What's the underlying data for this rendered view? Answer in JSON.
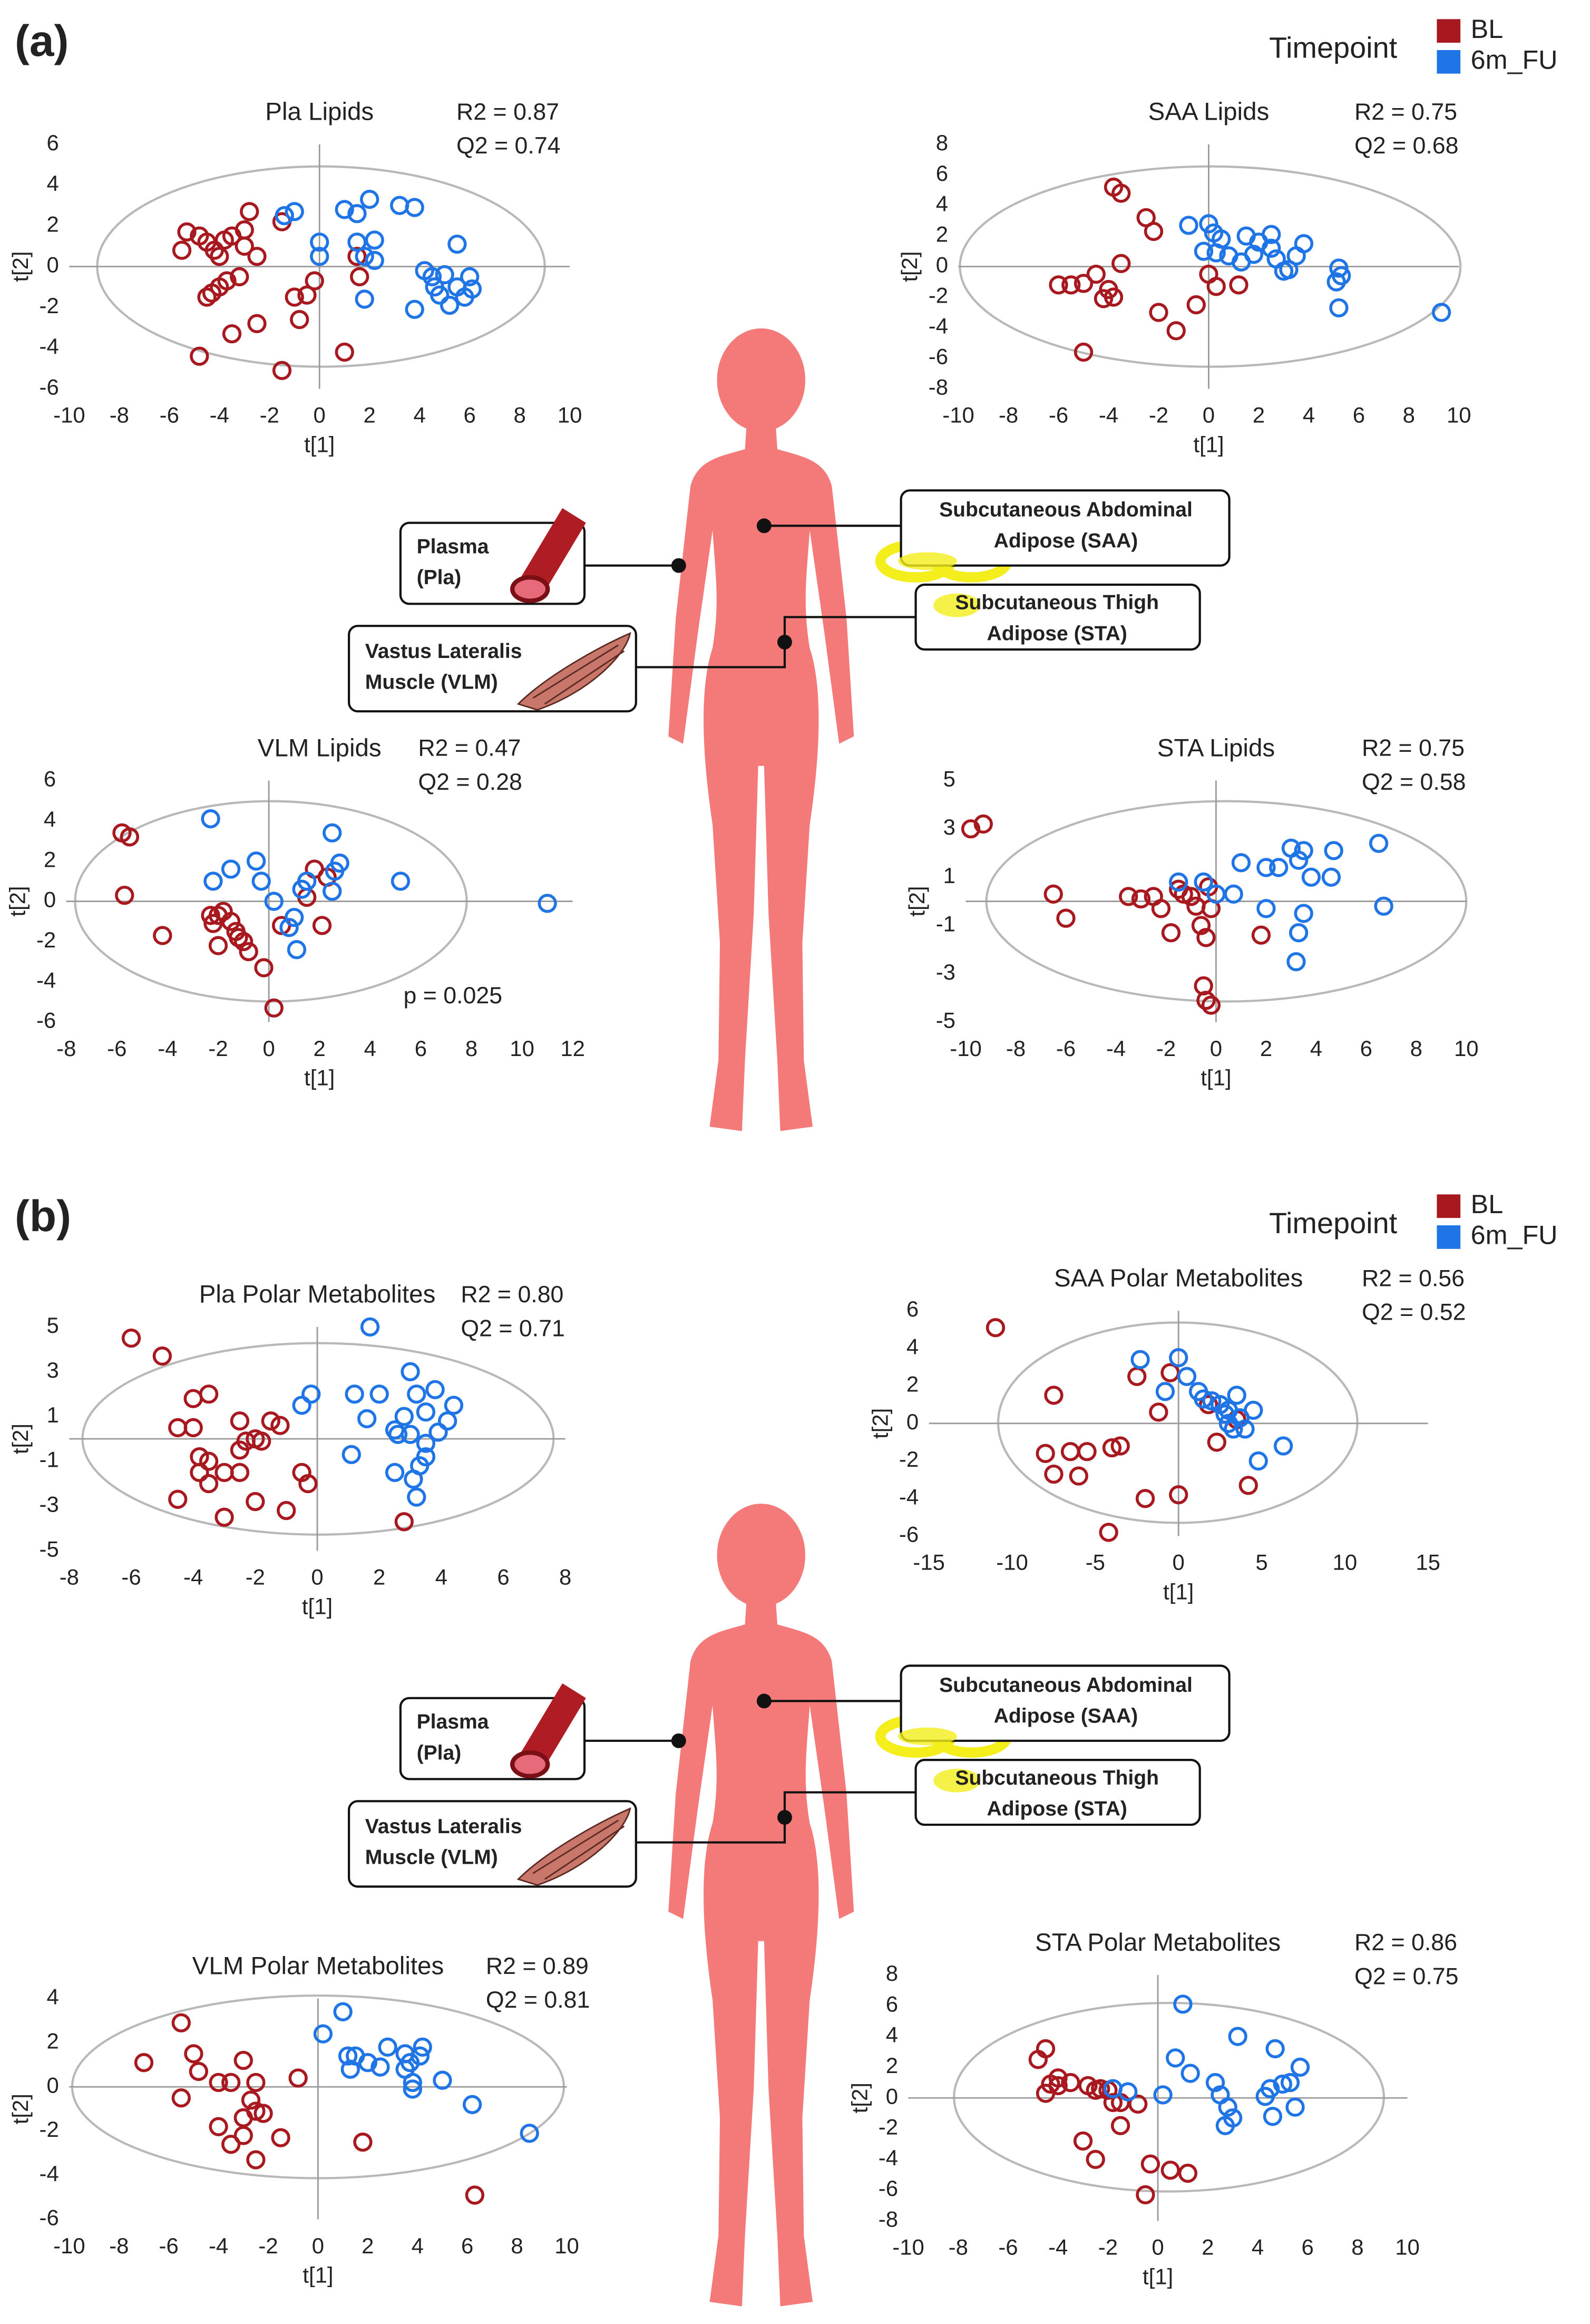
{
  "figure": {
    "panel_labels": [
      "(a)",
      "(b)"
    ],
    "legend_title": "Timepoint",
    "tissues": [
      {
        "lines": [
          "Plasma",
          "(Pla)"
        ]
      },
      {
        "lines": [
          "Subcutaneous Abdominal",
          "Adipose (SAA)"
        ]
      },
      {
        "lines": [
          "Subcutaneous Thigh",
          "Adipose (STA)"
        ]
      },
      {
        "lines": [
          "Vastus Lateralis",
          "Muscle (VLM)"
        ]
      }
    ]
  },
  "chart_data": [
    {
      "type": "scatter",
      "title": "Pla Lipids",
      "xlabel": "t[1]",
      "ylabel": "t[2]",
      "annotations": [
        "R2 = 0.87",
        "Q2 = 0.74"
      ],
      "xlim": [
        -10,
        10
      ],
      "xticks": [
        -10,
        -8,
        -6,
        -4,
        -2,
        0,
        2,
        4,
        6,
        8,
        10
      ],
      "ylim": [
        -6,
        6
      ],
      "yticks": [
        -6,
        -4,
        -2,
        0,
        2,
        4,
        6
      ],
      "series": [
        {
          "name": "BL",
          "color": "#a8181f",
          "x": [
            -5.3,
            -5.5,
            -4.8,
            -4.5,
            -4.2,
            -3.8,
            -3.5,
            -3,
            -2.8,
            -3,
            -2.5,
            -4.5,
            -4.3,
            -4,
            -3.7,
            -3.2,
            -3.5,
            -2.5,
            -4.8,
            -1.5,
            -1.5,
            -1,
            -0.8,
            -0.5,
            -0.2,
            1,
            1.5,
            1.6,
            -4
          ],
          "values": [
            1.7,
            0.8,
            1.5,
            1.2,
            0.8,
            1.3,
            1.5,
            1.8,
            2.7,
            1,
            0.5,
            -1.5,
            -1.3,
            -1,
            -0.7,
            -0.5,
            -3.3,
            -2.8,
            -4.4,
            -5.1,
            2.2,
            -1.5,
            -2.6,
            -1.4,
            -0.7,
            -4.2,
            0.5,
            -0.5,
            0.5
          ]
        },
        {
          "name": "6m_FU",
          "color": "#1f74e6",
          "x": [
            -1.4,
            -1,
            0,
            0,
            1,
            1.5,
            2,
            1.5,
            2.2,
            1.8,
            2.2,
            1.8,
            3.2,
            3.8,
            3.8,
            4.2,
            4.5,
            4.6,
            4.8,
            5,
            5.2,
            5.5,
            5.8,
            6,
            6.1,
            5.5
          ],
          "values": [
            2.5,
            2.7,
            1.2,
            0.5,
            2.8,
            2.6,
            3.3,
            1.2,
            1.3,
            0.5,
            0.3,
            -1.6,
            3,
            2.9,
            -2.1,
            -0.2,
            -0.5,
            -1,
            -1.4,
            -0.4,
            -1.9,
            1.1,
            -1.5,
            -0.5,
            -1.1,
            -1
          ]
        }
      ]
    },
    {
      "type": "scatter",
      "title": "SAA Lipids",
      "xlabel": "t[1]",
      "ylabel": "t[2]",
      "annotations": [
        "R2 = 0.75",
        "Q2 = 0.68"
      ],
      "xlim": [
        -10,
        10
      ],
      "xticks": [
        -10,
        -8,
        -6,
        -4,
        -2,
        0,
        2,
        4,
        6,
        8,
        10
      ],
      "ylim": [
        -8,
        8
      ],
      "yticks": [
        -8,
        -6,
        -4,
        -2,
        0,
        2,
        4,
        6,
        8
      ],
      "series": [
        {
          "name": "BL",
          "color": "#a8181f",
          "x": [
            -3.8,
            -3.5,
            -2.5,
            -2.2,
            -5.5,
            -5,
            -4.5,
            -4,
            -4.2,
            -3.8,
            -3.5,
            -2,
            -1.3,
            -0.5,
            0,
            0.3,
            1.2,
            -5,
            -6
          ],
          "values": [
            5.2,
            4.8,
            3.2,
            2.3,
            -1.2,
            -1.1,
            -0.5,
            -1.5,
            -2.1,
            -2,
            0.2,
            -3,
            -4.2,
            -2.5,
            -0.5,
            -1.3,
            -1.2,
            -5.6,
            -1.2
          ]
        },
        {
          "name": "6m_FU",
          "color": "#1f74e6",
          "x": [
            -0.8,
            0,
            0.2,
            0.5,
            -0.2,
            0.3,
            0.8,
            1.5,
            2,
            1.8,
            2.5,
            2.7,
            3,
            3.2,
            3.5,
            3.8,
            2.5,
            5.2,
            5.3,
            5.1,
            5.2,
            9.3,
            1.3
          ],
          "values": [
            2.7,
            2.8,
            2.2,
            1.8,
            1,
            0.9,
            0.7,
            2,
            1.6,
            0.8,
            1.2,
            0.5,
            -0.3,
            -0.2,
            0.7,
            1.5,
            2.1,
            -0.1,
            -0.6,
            -1,
            -2.7,
            -3,
            0.3
          ]
        }
      ]
    },
    {
      "type": "scatter",
      "title": "VLM Lipids",
      "xlabel": "t[1]",
      "ylabel": "t[2]",
      "annotations": [
        "R2 = 0.47",
        "Q2 = 0.28",
        "p = 0.025"
      ],
      "xlim": [
        -8,
        12
      ],
      "xticks": [
        -8,
        -6,
        -4,
        -2,
        0,
        2,
        4,
        6,
        8,
        10,
        12
      ],
      "ylim": [
        -6,
        6
      ],
      "yticks": [
        -6,
        -4,
        -2,
        0,
        2,
        4,
        6
      ],
      "series": [
        {
          "name": "BL",
          "color": "#a8181f",
          "x": [
            -5.8,
            -5.5,
            -5.7,
            -4.2,
            -2.3,
            -2.2,
            -2,
            -1.8,
            -1.5,
            -1.3,
            -1.2,
            -1,
            -0.8,
            -0.2,
            0.2,
            0.5,
            1.5,
            1.8,
            2.3,
            2.1,
            -2
          ],
          "values": [
            3.4,
            3.2,
            0.3,
            -1.7,
            -0.7,
            -1.1,
            -2.2,
            -0.5,
            -1,
            -1.5,
            -1.8,
            -2,
            -2.5,
            -3.3,
            -5.3,
            -1.2,
            0.2,
            1.6,
            1.2,
            -1.2,
            -0.7
          ]
        },
        {
          "name": "6m_FU",
          "color": "#1f74e6",
          "x": [
            -2.3,
            -2.2,
            -1.5,
            -0.5,
            0.2,
            0.8,
            1,
            1.3,
            1.5,
            1.1,
            2.5,
            2.8,
            2.6,
            2.5,
            5.2,
            11,
            -0.3
          ],
          "values": [
            4.1,
            1,
            1.6,
            2,
            0,
            -1.3,
            -0.8,
            0.6,
            1,
            -2.4,
            3.4,
            1.9,
            1.5,
            0.5,
            1,
            -0.1,
            1
          ]
        }
      ]
    },
    {
      "type": "scatter",
      "title": "STA Lipids",
      "xlabel": "t[1]",
      "ylabel": "t[2]",
      "annotations": [
        "R2 = 0.75",
        "Q2 = 0.58"
      ],
      "xlim": [
        -10,
        10
      ],
      "xticks": [
        -10,
        -8,
        -6,
        -4,
        -2,
        0,
        2,
        4,
        6,
        8,
        10
      ],
      "ylim": [
        -5,
        5
      ],
      "yticks": [
        -5,
        -3,
        -1,
        1,
        3,
        5
      ],
      "series": [
        {
          "name": "BL",
          "color": "#a8181f",
          "x": [
            -9.8,
            -9.3,
            -6.5,
            -6,
            -3.5,
            -3,
            -2.5,
            -2.2,
            -1.8,
            -1.5,
            -1,
            -0.8,
            -0.6,
            -0.4,
            -0.2,
            -0.5,
            -0.4,
            -0.2,
            1.8,
            -0.3,
            -1.3
          ],
          "values": [
            3,
            3.2,
            0.3,
            -0.7,
            0.2,
            0.1,
            0.2,
            -0.3,
            -1.3,
            0.5,
            0.2,
            -0.2,
            -1,
            -1.5,
            -0.3,
            -3.5,
            -4.1,
            -4.3,
            -1.4,
            0.6,
            0.3
          ]
        },
        {
          "name": "6m_FU",
          "color": "#1f74e6",
          "x": [
            -1.5,
            -0.5,
            0,
            1,
            2,
            2.5,
            3,
            3.3,
            3.5,
            3.8,
            4.7,
            4.6,
            3.5,
            3.3,
            3.2,
            6.5,
            6.7,
            2,
            0.7
          ],
          "values": [
            0.8,
            0.8,
            0.3,
            1.6,
            1.4,
            1.4,
            2.2,
            1.7,
            2.1,
            1,
            2.1,
            1,
            -0.5,
            -1.3,
            -2.5,
            2.4,
            -0.2,
            -0.3,
            0.3
          ]
        }
      ]
    },
    {
      "type": "scatter",
      "title": "Pla Polar Metabolites",
      "xlabel": "t[1]",
      "ylabel": "t[2]",
      "annotations": [
        "R2 = 0.80",
        "Q2 = 0.71"
      ],
      "xlim": [
        -8,
        8
      ],
      "xticks": [
        -8,
        -6,
        -4,
        -2,
        0,
        2,
        4,
        6,
        8
      ],
      "ylim": [
        -5,
        5
      ],
      "yticks": [
        -5,
        -3,
        -1,
        1,
        3,
        5
      ],
      "series": [
        {
          "name": "BL",
          "color": "#a8181f",
          "x": [
            -6,
            -5,
            -4,
            -3.5,
            -4.5,
            -4,
            -3.8,
            -3.5,
            -3.8,
            -3,
            -3.5,
            -4.5,
            -2.5,
            -2,
            -1.8,
            -1.5,
            -1.2,
            -2.5,
            -2.5,
            -2,
            -3,
            -1,
            -0.3,
            -0.5,
            2.8,
            -2.3
          ],
          "values": [
            4.5,
            3.7,
            1.8,
            2,
            0.5,
            0.5,
            -0.8,
            -1,
            -1.5,
            -1.5,
            -2,
            -2.7,
            -0.5,
            0,
            -0.1,
            0.8,
            0.6,
            0.8,
            -1.5,
            -2.8,
            -3.5,
            -3.2,
            -2,
            -1.5,
            -3.7,
            -0.1
          ]
        },
        {
          "name": "6m_FU",
          "color": "#1f74e6",
          "x": [
            -0.5,
            -0.2,
            1.2,
            1.7,
            1.6,
            2,
            2.5,
            2.6,
            2.8,
            3,
            3.2,
            3.5,
            3.8,
            3.9,
            4.2,
            4.4,
            3.5,
            3.3,
            3.1,
            3.2,
            2.5,
            1.1,
            3,
            3.5
          ],
          "values": [
            1.5,
            2,
            2,
            5,
            0.9,
            2,
            0.4,
            0.2,
            1,
            3,
            2,
            1.2,
            2.2,
            0.3,
            0.8,
            1.5,
            -0.8,
            -1.2,
            -1.8,
            -2.6,
            -1.5,
            -0.7,
            0.2,
            -0.2
          ]
        }
      ]
    },
    {
      "type": "scatter",
      "title": "SAA Polar Metabolites",
      "xlabel": "t[1]",
      "ylabel": "t[2]",
      "annotations": [
        "R2 = 0.56",
        "Q2 = 0.52"
      ],
      "xlim": [
        -15,
        15
      ],
      "xticks": [
        -15,
        -10,
        -5,
        0,
        5,
        10,
        15
      ],
      "ylim": [
        -6,
        6
      ],
      "yticks": [
        -6,
        -4,
        -2,
        0,
        2,
        4,
        6
      ],
      "series": [
        {
          "name": "BL",
          "color": "#a8181f",
          "x": [
            -11,
            -7.5,
            -8,
            -7.5,
            -6.5,
            -5.5,
            -6,
            -4,
            -3.5,
            -2.5,
            -2,
            0,
            -4.2,
            -1.2,
            -0.5,
            2.3,
            4.2,
            1.8,
            3.5
          ],
          "values": [
            5.1,
            1.5,
            -1.6,
            -2.7,
            -1.5,
            -1.5,
            -2.8,
            -1.3,
            -1.2,
            2.5,
            -4,
            -3.8,
            -5.8,
            0.6,
            2.7,
            -1,
            -3.3,
            1,
            0.2
          ]
        },
        {
          "name": "6m_FU",
          "color": "#1f74e6",
          "x": [
            -2.3,
            0,
            0.5,
            -0.8,
            1.2,
            1.5,
            2,
            2.5,
            3,
            3.5,
            3,
            3.7,
            4,
            4.5,
            4.8,
            6.3,
            3.3,
            2.8
          ],
          "values": [
            3.4,
            3.5,
            2.5,
            1.7,
            1.7,
            1.3,
            1.2,
            1,
            0.7,
            1.5,
            0,
            0.3,
            -0.3,
            0.7,
            -2,
            -1.2,
            -0.3,
            0.5
          ]
        }
      ]
    },
    {
      "type": "scatter",
      "title": "VLM Polar Metabolites",
      "xlabel": "t[1]",
      "ylabel": "t[2]",
      "annotations": [
        "R2 = 0.89",
        "Q2 = 0.81"
      ],
      "xlim": [
        -10,
        10
      ],
      "xticks": [
        -10,
        -8,
        -6,
        -4,
        -2,
        0,
        2,
        4,
        6,
        8,
        10
      ],
      "ylim": [
        -6,
        4
      ],
      "yticks": [
        -6,
        -4,
        -2,
        0,
        2,
        4
      ],
      "series": [
        {
          "name": "BL",
          "color": "#a8181f",
          "x": [
            -7,
            -5.5,
            -5,
            -4.8,
            -5.5,
            -4,
            -3.5,
            -3,
            -2.5,
            -2.7,
            -2.5,
            -3,
            -2.2,
            -4,
            -3.5,
            -2.5,
            -1.5,
            -0.8,
            1.8,
            6.3,
            -3
          ],
          "values": [
            1.1,
            2.9,
            1.5,
            0.7,
            -0.5,
            0.2,
            0.2,
            1.2,
            0.2,
            -0.6,
            -1.1,
            -1.4,
            -1.2,
            -1.8,
            -2.6,
            -3.3,
            -2.3,
            0.4,
            -2.5,
            -4.9,
            -2.2
          ]
        },
        {
          "name": "6m_FU",
          "color": "#1f74e6",
          "x": [
            0.2,
            1,
            1.2,
            1.5,
            1.3,
            2,
            2.5,
            2.8,
            3.5,
            3.5,
            3.8,
            3.8,
            4.2,
            4.1,
            5,
            6.2,
            8.5,
            3.7
          ],
          "values": [
            2.4,
            3.4,
            1.4,
            1.4,
            0.8,
            1.1,
            0.9,
            1.8,
            1.5,
            0.8,
            0.2,
            -0.1,
            1.8,
            1.4,
            0.3,
            -0.8,
            -2.1,
            1.1
          ]
        }
      ]
    },
    {
      "type": "scatter",
      "title": "STA Polar Metabolites",
      "xlabel": "t[1]",
      "ylabel": "t[2]",
      "annotations": [
        "R2 = 0.86",
        "Q2 = 0.75"
      ],
      "xlim": [
        -10,
        10
      ],
      "xticks": [
        -10,
        -8,
        -6,
        -4,
        -2,
        0,
        2,
        4,
        6,
        8,
        10
      ],
      "ylim": [
        -8,
        8
      ],
      "yticks": [
        -8,
        -6,
        -4,
        -2,
        0,
        2,
        4,
        6,
        8
      ],
      "series": [
        {
          "name": "BL",
          "color": "#a8181f",
          "x": [
            -4.8,
            -4.5,
            -4.3,
            -4.5,
            -4,
            -3.5,
            -2.8,
            -2.5,
            -2,
            -1.8,
            -3,
            -2.5,
            -1.5,
            -1.5,
            -0.8,
            -0.5,
            -0.3,
            0.5,
            1.2,
            -4,
            -2.3
          ],
          "values": [
            2.5,
            3.2,
            0.9,
            0.3,
            1.3,
            1,
            0.8,
            0.5,
            0.5,
            -0.3,
            -2.8,
            -4,
            -1.8,
            -0.3,
            -0.4,
            -6.3,
            -4.3,
            -4.7,
            -4.9,
            0.8,
            0.6
          ]
        },
        {
          "name": "6m_FU",
          "color": "#1f74e6",
          "x": [
            -1.8,
            -1.2,
            0.2,
            0.7,
            1,
            1.3,
            2.3,
            2.5,
            2.8,
            3,
            3.2,
            2.7,
            4.3,
            4.7,
            4.6,
            4.5,
            5,
            5.3,
            5.7,
            5.5
          ],
          "values": [
            0.6,
            0.4,
            0.2,
            2.6,
            6.1,
            1.6,
            1,
            0.2,
            -0.6,
            -1.3,
            4,
            -1.8,
            0.1,
            3.2,
            -1.2,
            0.6,
            0.9,
            1,
            2,
            -0.6
          ]
        }
      ]
    }
  ]
}
